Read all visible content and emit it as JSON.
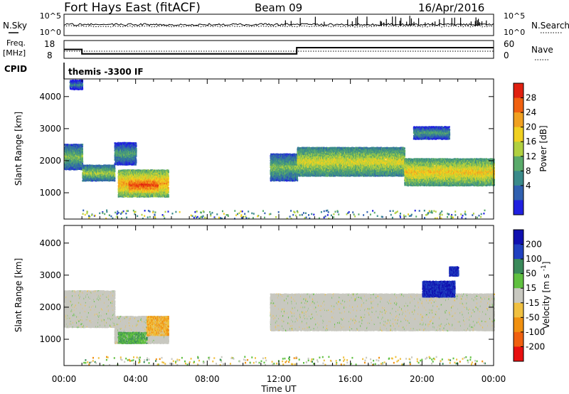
{
  "header": {
    "title": "Fort Hays East (fitACF)",
    "beam": "Beam 09",
    "date": "16/Apr/2016"
  },
  "summary_panels": {
    "nsky_label": "N.Sky",
    "nsky_ticks": [
      "10^5",
      "10^0"
    ],
    "nsearch_label": "N.Search",
    "nsearch_ticks": [
      "10^5",
      "10^0"
    ],
    "freq_label": "Freq.",
    "freq_unit": "[MHz]",
    "freq_ticks": [
      18,
      8
    ],
    "nave_label": "Nave",
    "nave_ticks": [
      60,
      0
    ],
    "cpid_label": "CPID",
    "cpid_value": "themis -3300 IF"
  },
  "colors": {
    "power_scale": [
      "#2020e0",
      "#3060b0",
      "#3a8a8a",
      "#5aaa6a",
      "#b0d040",
      "#f0d020",
      "#f0a020",
      "#f06010",
      "#e02010"
    ],
    "velocity_scale": [
      "#e81010",
      "#f06010",
      "#f09010",
      "#f0c040",
      "#c8c8c0",
      "#60c040",
      "#3a8a5a",
      "#2040c0",
      "#1010b0"
    ],
    "ground_scatter": "#c8c8c0"
  },
  "chart_data": [
    {
      "type": "heatmap",
      "name": "power",
      "xlabel": "",
      "ylabel": "Slant Range [km]",
      "x_tick_labels": [
        "00:00",
        "04:00",
        "08:00",
        "12:00",
        "16:00",
        "20:00",
        "00:00"
      ],
      "y_tick_labels": [
        "1000",
        "2000",
        "3000",
        "4000"
      ],
      "y_tick_values": [
        1000,
        2000,
        3000,
        4000
      ],
      "xlim_hours": [
        0,
        24
      ],
      "ylim_km": [
        180,
        4550
      ],
      "colorbar": {
        "label": "Power [dB]",
        "ticks": [
          "28",
          "24",
          "20",
          "16",
          "12",
          "8",
          "4"
        ],
        "range": [
          0,
          30
        ]
      },
      "regions": [
        {
          "t0": 0.0,
          "t1": 1.0,
          "r_lo": 1750,
          "r_hi": 2550,
          "level": 14
        },
        {
          "t0": 1.0,
          "t1": 2.8,
          "r_lo": 1400,
          "r_hi": 1900,
          "level": 16
        },
        {
          "t0": 2.8,
          "t1": 4.0,
          "r_lo": 1900,
          "r_hi": 2600,
          "level": 12
        },
        {
          "t0": 3.0,
          "t1": 5.8,
          "r_lo": 900,
          "r_hi": 1750,
          "level": 22
        },
        {
          "t0": 3.6,
          "t1": 5.2,
          "r_lo": 1050,
          "r_hi": 1500,
          "level": 28
        },
        {
          "t0": 0.3,
          "t1": 1.0,
          "r_lo": 4250,
          "r_hi": 4550,
          "level": 10
        },
        {
          "t0": 11.5,
          "t1": 13.0,
          "r_lo": 1400,
          "r_hi": 2250,
          "level": 14
        },
        {
          "t0": 13.0,
          "t1": 19.0,
          "r_lo": 1550,
          "r_hi": 2450,
          "level": 18
        },
        {
          "t0": 19.0,
          "t1": 24.0,
          "r_lo": 1250,
          "r_hi": 2100,
          "level": 20
        },
        {
          "t0": 19.5,
          "t1": 21.5,
          "r_lo": 2700,
          "r_hi": 3100,
          "level": 12
        }
      ]
    },
    {
      "type": "heatmap",
      "name": "velocity",
      "xlabel": "Time UT",
      "ylabel": "Slant Range [km]",
      "x_tick_labels": [
        "00:00",
        "04:00",
        "08:00",
        "12:00",
        "16:00",
        "20:00",
        "00:00"
      ],
      "y_tick_labels": [
        "1000",
        "2000",
        "3000",
        "4000"
      ],
      "y_tick_values": [
        1000,
        2000,
        3000,
        4000
      ],
      "xlim_hours": [
        0,
        24
      ],
      "ylim_km": [
        180,
        4550
      ],
      "colorbar": {
        "label": "Velocity [m s^-1]",
        "ticks": [
          "200",
          "100",
          "50",
          "15",
          "-15",
          "-50",
          "-100",
          "-200"
        ],
        "range": [
          -250,
          250
        ]
      },
      "regions": [
        {
          "t0": 0.0,
          "t1": 2.8,
          "r_lo": 1400,
          "r_hi": 2550,
          "value": 0
        },
        {
          "t0": 2.8,
          "t1": 5.8,
          "r_lo": 900,
          "r_hi": 1750,
          "value": 0
        },
        {
          "t0": 3.0,
          "t1": 4.6,
          "r_lo": 900,
          "r_hi": 1250,
          "value": 40
        },
        {
          "t0": 4.6,
          "t1": 5.8,
          "r_lo": 1150,
          "r_hi": 1750,
          "value": -40
        },
        {
          "t0": 11.5,
          "t1": 24.0,
          "r_lo": 1300,
          "r_hi": 2450,
          "value": 0
        },
        {
          "t0": 20.0,
          "t1": 21.8,
          "r_lo": 2350,
          "r_hi": 2850,
          "value": 200
        },
        {
          "t0": 21.5,
          "t1": 22.0,
          "r_lo": 3000,
          "r_hi": 3300,
          "value": 200
        }
      ]
    }
  ],
  "summary_series": {
    "freq_mhz": [
      {
        "t0": 0.0,
        "t1": 1.0,
        "value": 13
      },
      {
        "t0": 1.0,
        "t1": 13.0,
        "value": 10.5
      },
      {
        "t0": 13.0,
        "t1": 24.0,
        "value": 14
      }
    ],
    "nave": 24
  }
}
